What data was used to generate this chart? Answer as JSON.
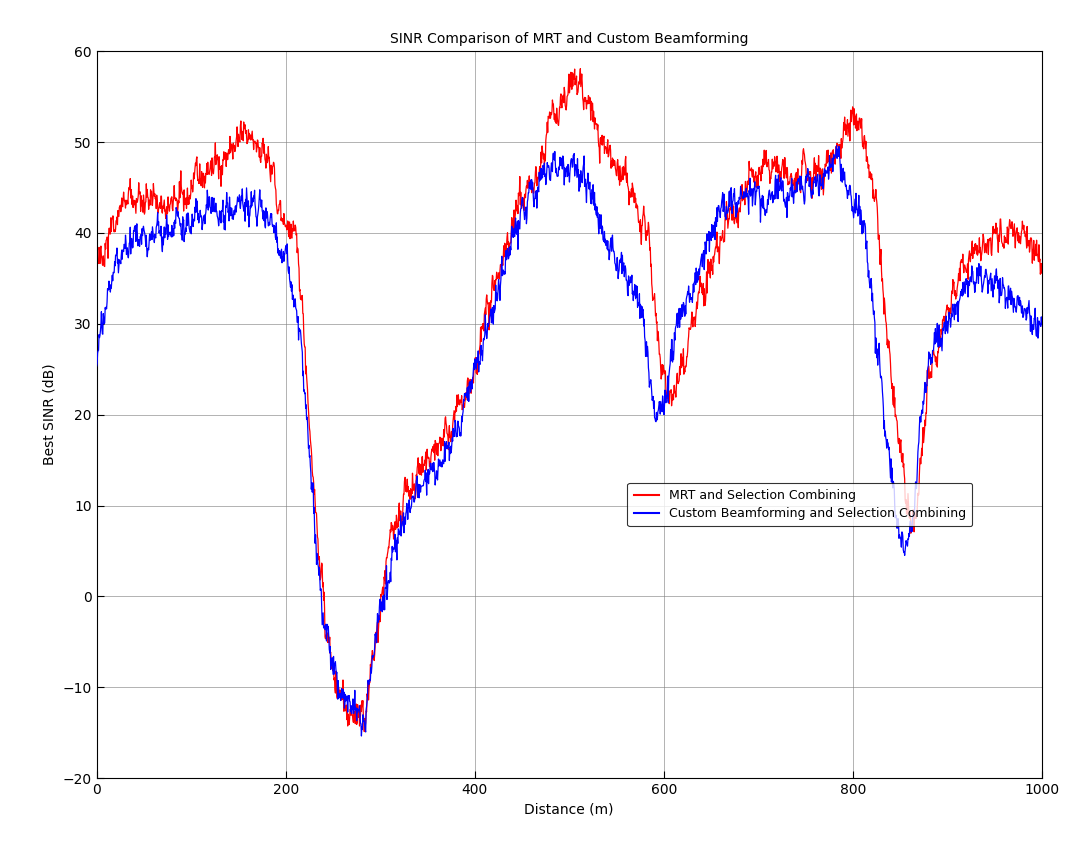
{
  "title": "SINR Comparison of MRT and Custom Beamforming",
  "xlabel": "Distance (m)",
  "ylabel": "Best SINR (dB)",
  "xlim": [
    0,
    1000
  ],
  "ylim": [
    -20,
    60
  ],
  "yticks": [
    -20,
    -10,
    0,
    10,
    20,
    30,
    40,
    50,
    60
  ],
  "xticks": [
    0,
    200,
    400,
    600,
    800,
    1000
  ],
  "mrt_color": "#ff0000",
  "custom_color": "#0000ff",
  "background_color": "#ffffff",
  "grid_color": "#808080",
  "legend_labels": [
    "MRT and Selection Combining",
    "Custom Beamforming and Selection Combining"
  ],
  "line_width": 0.9,
  "title_fontsize": 10,
  "label_fontsize": 10,
  "tick_fontsize": 10,
  "legend_fontsize": 9,
  "seed": 42,
  "mrt_envelope_x": [
    0,
    20,
    50,
    80,
    110,
    140,
    160,
    180,
    200,
    215,
    225,
    235,
    245,
    255,
    265,
    275,
    285,
    295,
    310,
    330,
    350,
    370,
    385,
    400,
    415,
    430,
    450,
    465,
    480,
    495,
    510,
    525,
    540,
    555,
    565,
    575,
    585,
    595,
    610,
    630,
    650,
    670,
    690,
    710,
    730,
    750,
    770,
    790,
    800,
    815,
    825,
    835,
    845,
    855,
    865,
    875,
    890,
    910,
    930,
    960,
    1000
  ],
  "mrt_envelope_y": [
    36,
    42,
    44,
    43,
    46,
    49,
    50,
    48,
    41,
    35,
    20,
    5,
    -5,
    -10,
    -12,
    -13,
    -12,
    -5,
    5,
    12,
    15,
    18,
    21,
    25,
    32,
    37,
    43,
    46,
    52,
    55,
    56,
    53,
    49,
    46,
    44,
    42,
    38,
    28,
    22,
    30,
    36,
    42,
    45,
    47,
    46,
    46,
    47,
    51,
    53,
    48,
    42,
    30,
    20,
    12,
    8,
    18,
    28,
    35,
    38,
    40,
    36
  ],
  "custom_envelope_x": [
    0,
    20,
    50,
    80,
    110,
    140,
    160,
    175,
    190,
    205,
    215,
    225,
    235,
    245,
    255,
    265,
    275,
    285,
    295,
    310,
    330,
    350,
    370,
    385,
    400,
    415,
    430,
    450,
    465,
    480,
    495,
    510,
    525,
    540,
    555,
    565,
    575,
    585,
    595,
    610,
    630,
    650,
    670,
    690,
    710,
    730,
    750,
    770,
    790,
    800,
    815,
    825,
    835,
    845,
    855,
    865,
    875,
    890,
    910,
    930,
    960,
    1000
  ],
  "custom_envelope_y": [
    26,
    36,
    40,
    40,
    42,
    43,
    43,
    42,
    40,
    35,
    28,
    15,
    2,
    -5,
    -10,
    -12,
    -13,
    -12,
    -5,
    3,
    10,
    13,
    16,
    20,
    25,
    30,
    36,
    42,
    45,
    47,
    47,
    46,
    44,
    39,
    36,
    34,
    32,
    25,
    20,
    28,
    34,
    40,
    43,
    44,
    44,
    44,
    45,
    46,
    47,
    44,
    38,
    28,
    18,
    10,
    5,
    10,
    22,
    28,
    32,
    35,
    34,
    30
  ]
}
